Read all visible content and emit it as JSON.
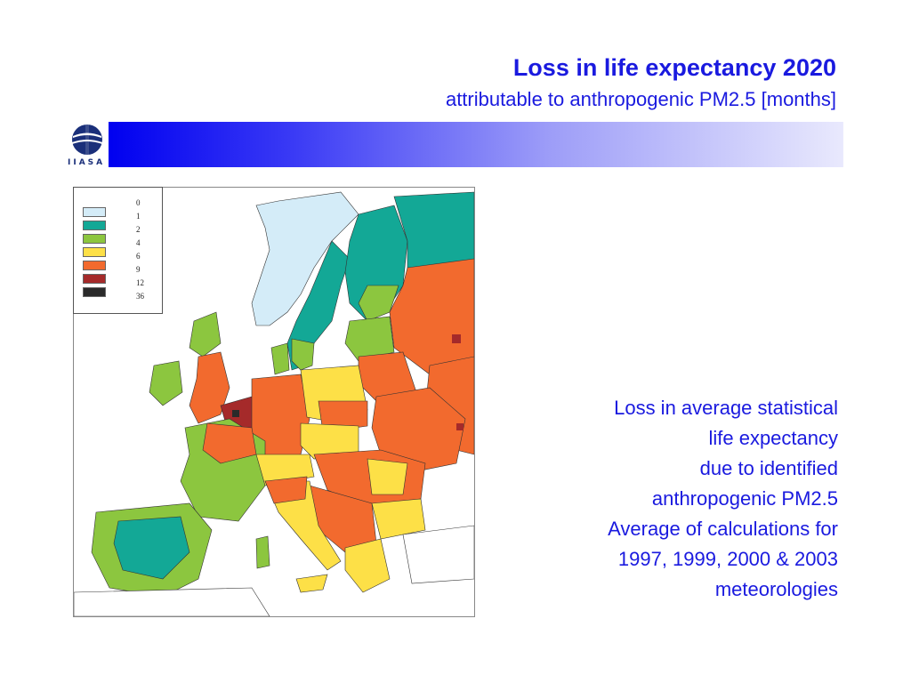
{
  "header": {
    "title": "Loss in life expectancy 2020",
    "subtitle": "attributable to anthropogenic PM2.5 [months]"
  },
  "logo": {
    "text": "IIASA"
  },
  "legend": {
    "items": [
      {
        "label": "0",
        "color": "#d4ecf8"
      },
      {
        "label": "1",
        "color": "#13a896"
      },
      {
        "label": "2",
        "color": "#8cc63f"
      },
      {
        "label": "4",
        "color": "#fde047"
      },
      {
        "label": "6",
        "color": "#f26a2e"
      },
      {
        "label": "9",
        "color": "#a52a2a"
      },
      {
        "label": "12",
        "color": "#2a2a2a"
      },
      {
        "label": "36",
        "color": ""
      }
    ]
  },
  "description": {
    "lines": [
      "Loss in average statistical",
      "life expectancy",
      "due to identified",
      "anthropogenic PM2.5",
      "Average of calculations for",
      "1997, 1999, 2000 & 2003",
      "meteorologies"
    ]
  },
  "colors": {
    "accent": "#1a1adf"
  }
}
